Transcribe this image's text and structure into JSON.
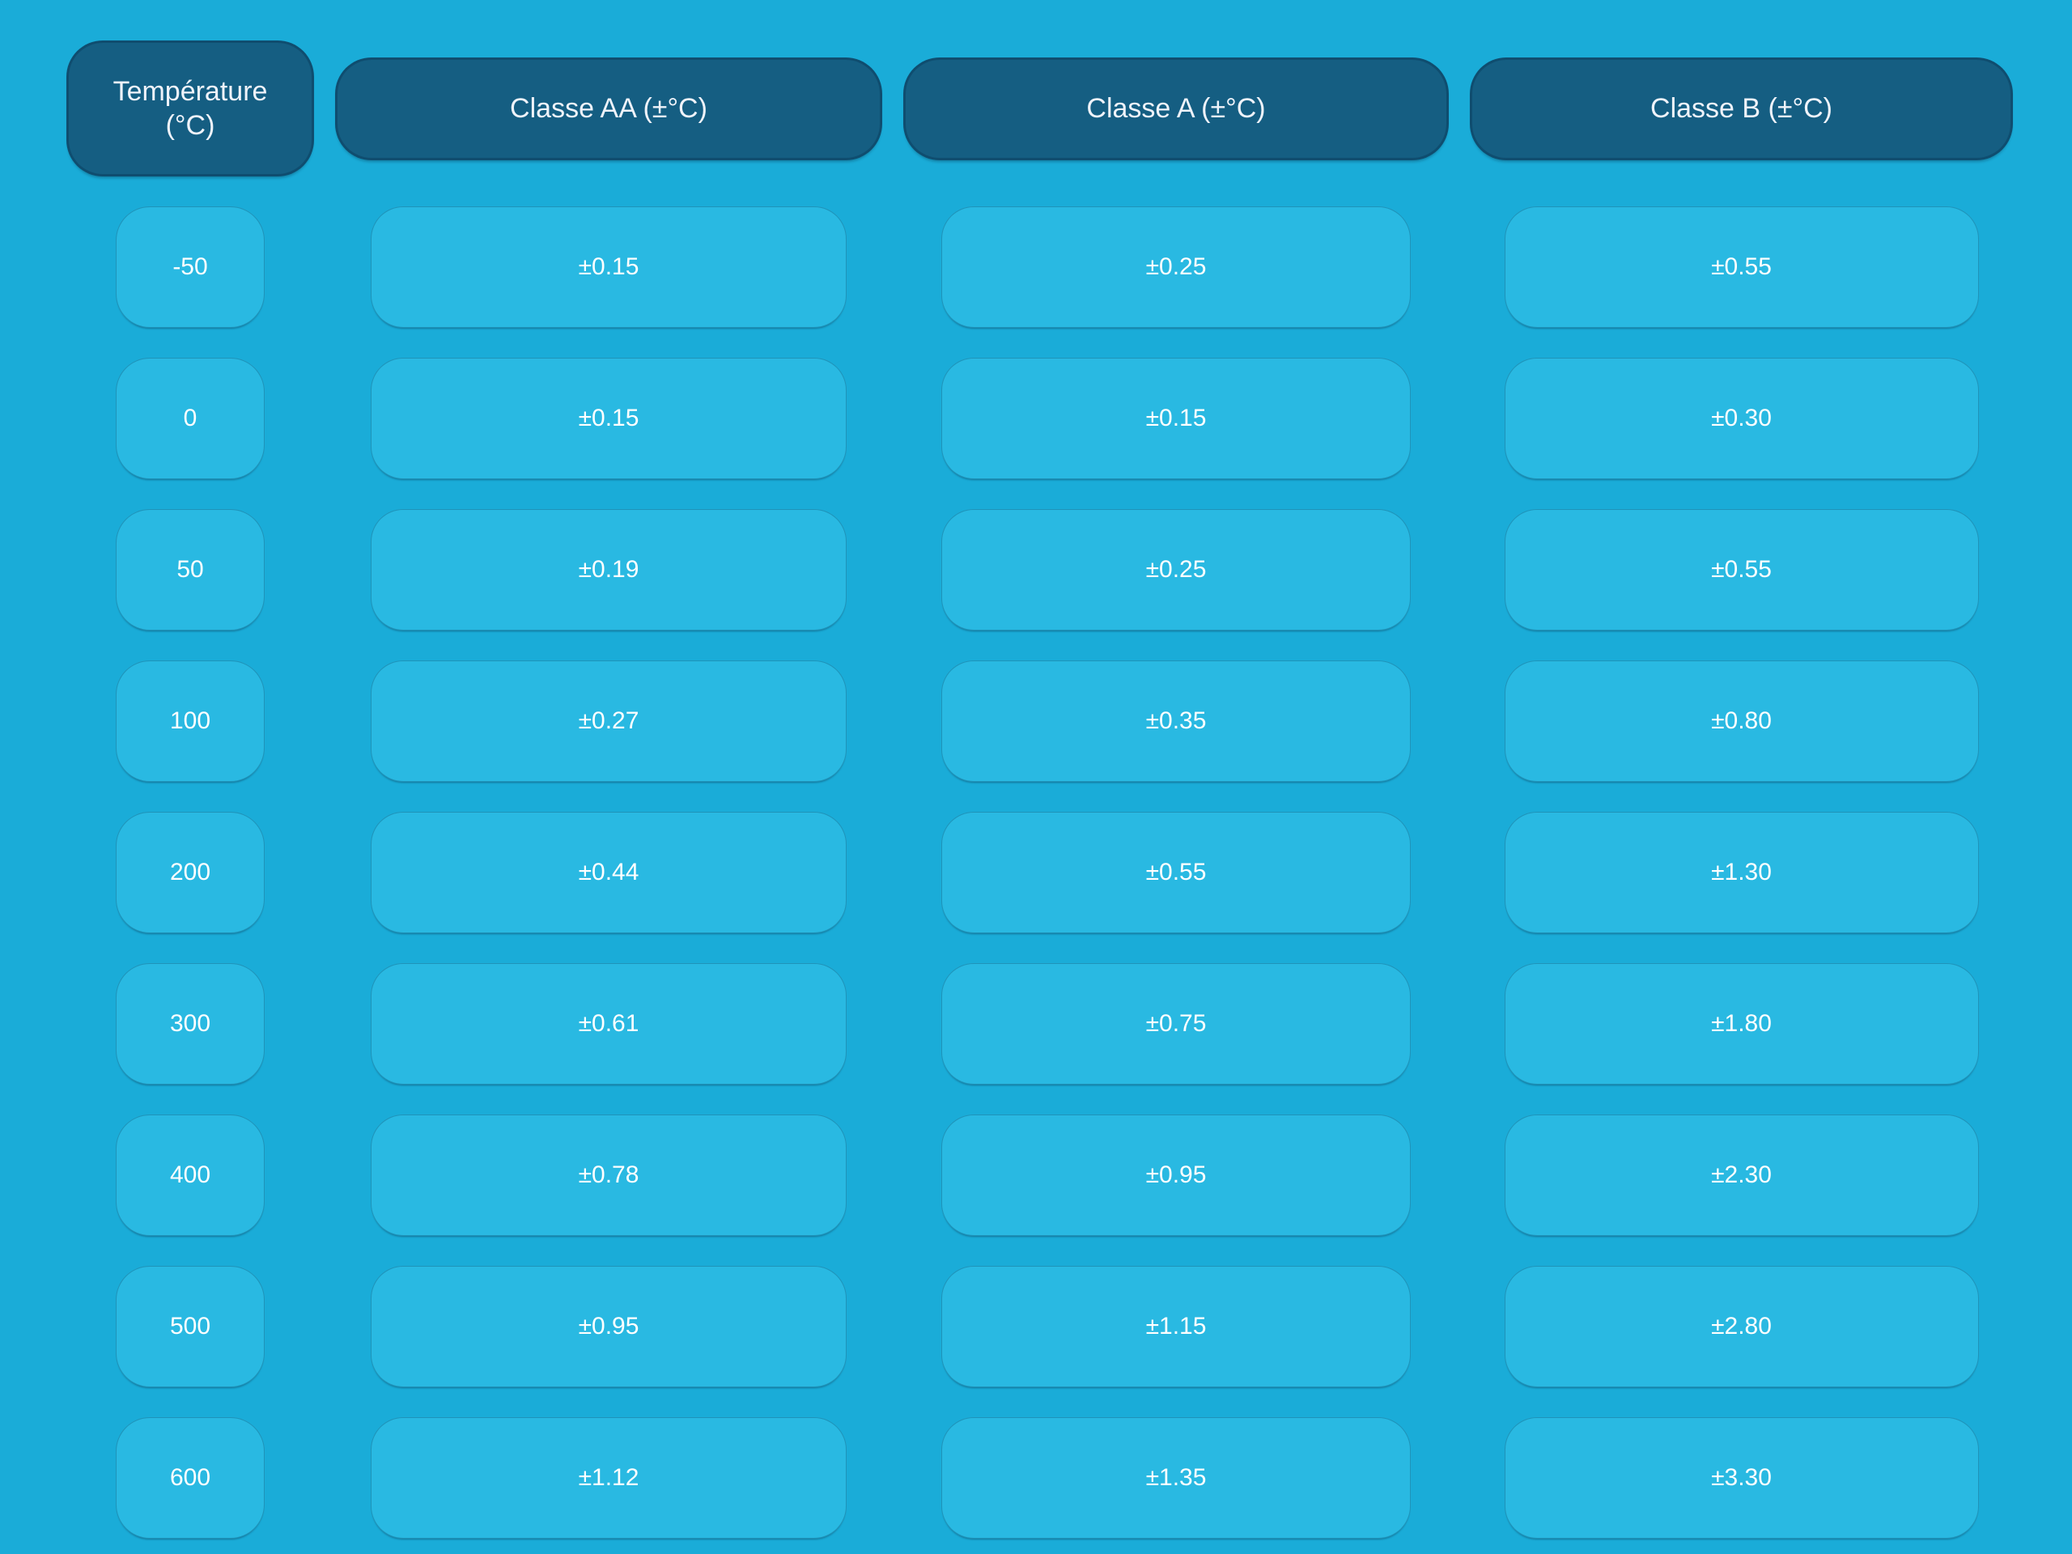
{
  "colors": {
    "background": "#1AACD8",
    "header_fill": "#155E82",
    "header_text": "#EFF3FA",
    "cell_fill": "#29B9E2",
    "cell_text": "#FFFFFF"
  },
  "table": {
    "headers": [
      "Température (°C)",
      "Classe AA (±°C)",
      "Classe A (±°C)",
      "Classe B (±°C)"
    ],
    "rows": [
      {
        "temp": "-50",
        "aa": "±0.15",
        "a": "±0.25",
        "b": "±0.55"
      },
      {
        "temp": "0",
        "aa": "±0.15",
        "a": "±0.15",
        "b": "±0.30"
      },
      {
        "temp": "50",
        "aa": "±0.19",
        "a": "±0.25",
        "b": "±0.55"
      },
      {
        "temp": "100",
        "aa": "±0.27",
        "a": "±0.35",
        "b": "±0.80"
      },
      {
        "temp": "200",
        "aa": "±0.44",
        "a": "±0.55",
        "b": "±1.30"
      },
      {
        "temp": "300",
        "aa": "±0.61",
        "a": "±0.75",
        "b": "±1.80"
      },
      {
        "temp": "400",
        "aa": "±0.78",
        "a": "±0.95",
        "b": "±2.30"
      },
      {
        "temp": "500",
        "aa": "±0.95",
        "a": "±1.15",
        "b": "±2.80"
      },
      {
        "temp": "600",
        "aa": "±1.12",
        "a": "±1.35",
        "b": "±3.30"
      }
    ]
  },
  "chart_data": {
    "type": "table",
    "title": "",
    "columns": [
      "Température (°C)",
      "Classe AA (±°C)",
      "Classe A (±°C)",
      "Classe B (±°C)"
    ],
    "rows": [
      [
        -50,
        0.15,
        0.25,
        0.55
      ],
      [
        0,
        0.15,
        0.15,
        0.3
      ],
      [
        50,
        0.19,
        0.25,
        0.55
      ],
      [
        100,
        0.27,
        0.35,
        0.8
      ],
      [
        200,
        0.44,
        0.55,
        1.3
      ],
      [
        300,
        0.61,
        0.75,
        1.8
      ],
      [
        400,
        0.78,
        0.95,
        2.3
      ],
      [
        500,
        0.95,
        1.15,
        2.8
      ],
      [
        600,
        1.12,
        1.35,
        3.3
      ]
    ],
    "layout_hints": {
      "grid": "off",
      "style": "rounded-pill table on cyan background",
      "header_position": "top row"
    }
  }
}
